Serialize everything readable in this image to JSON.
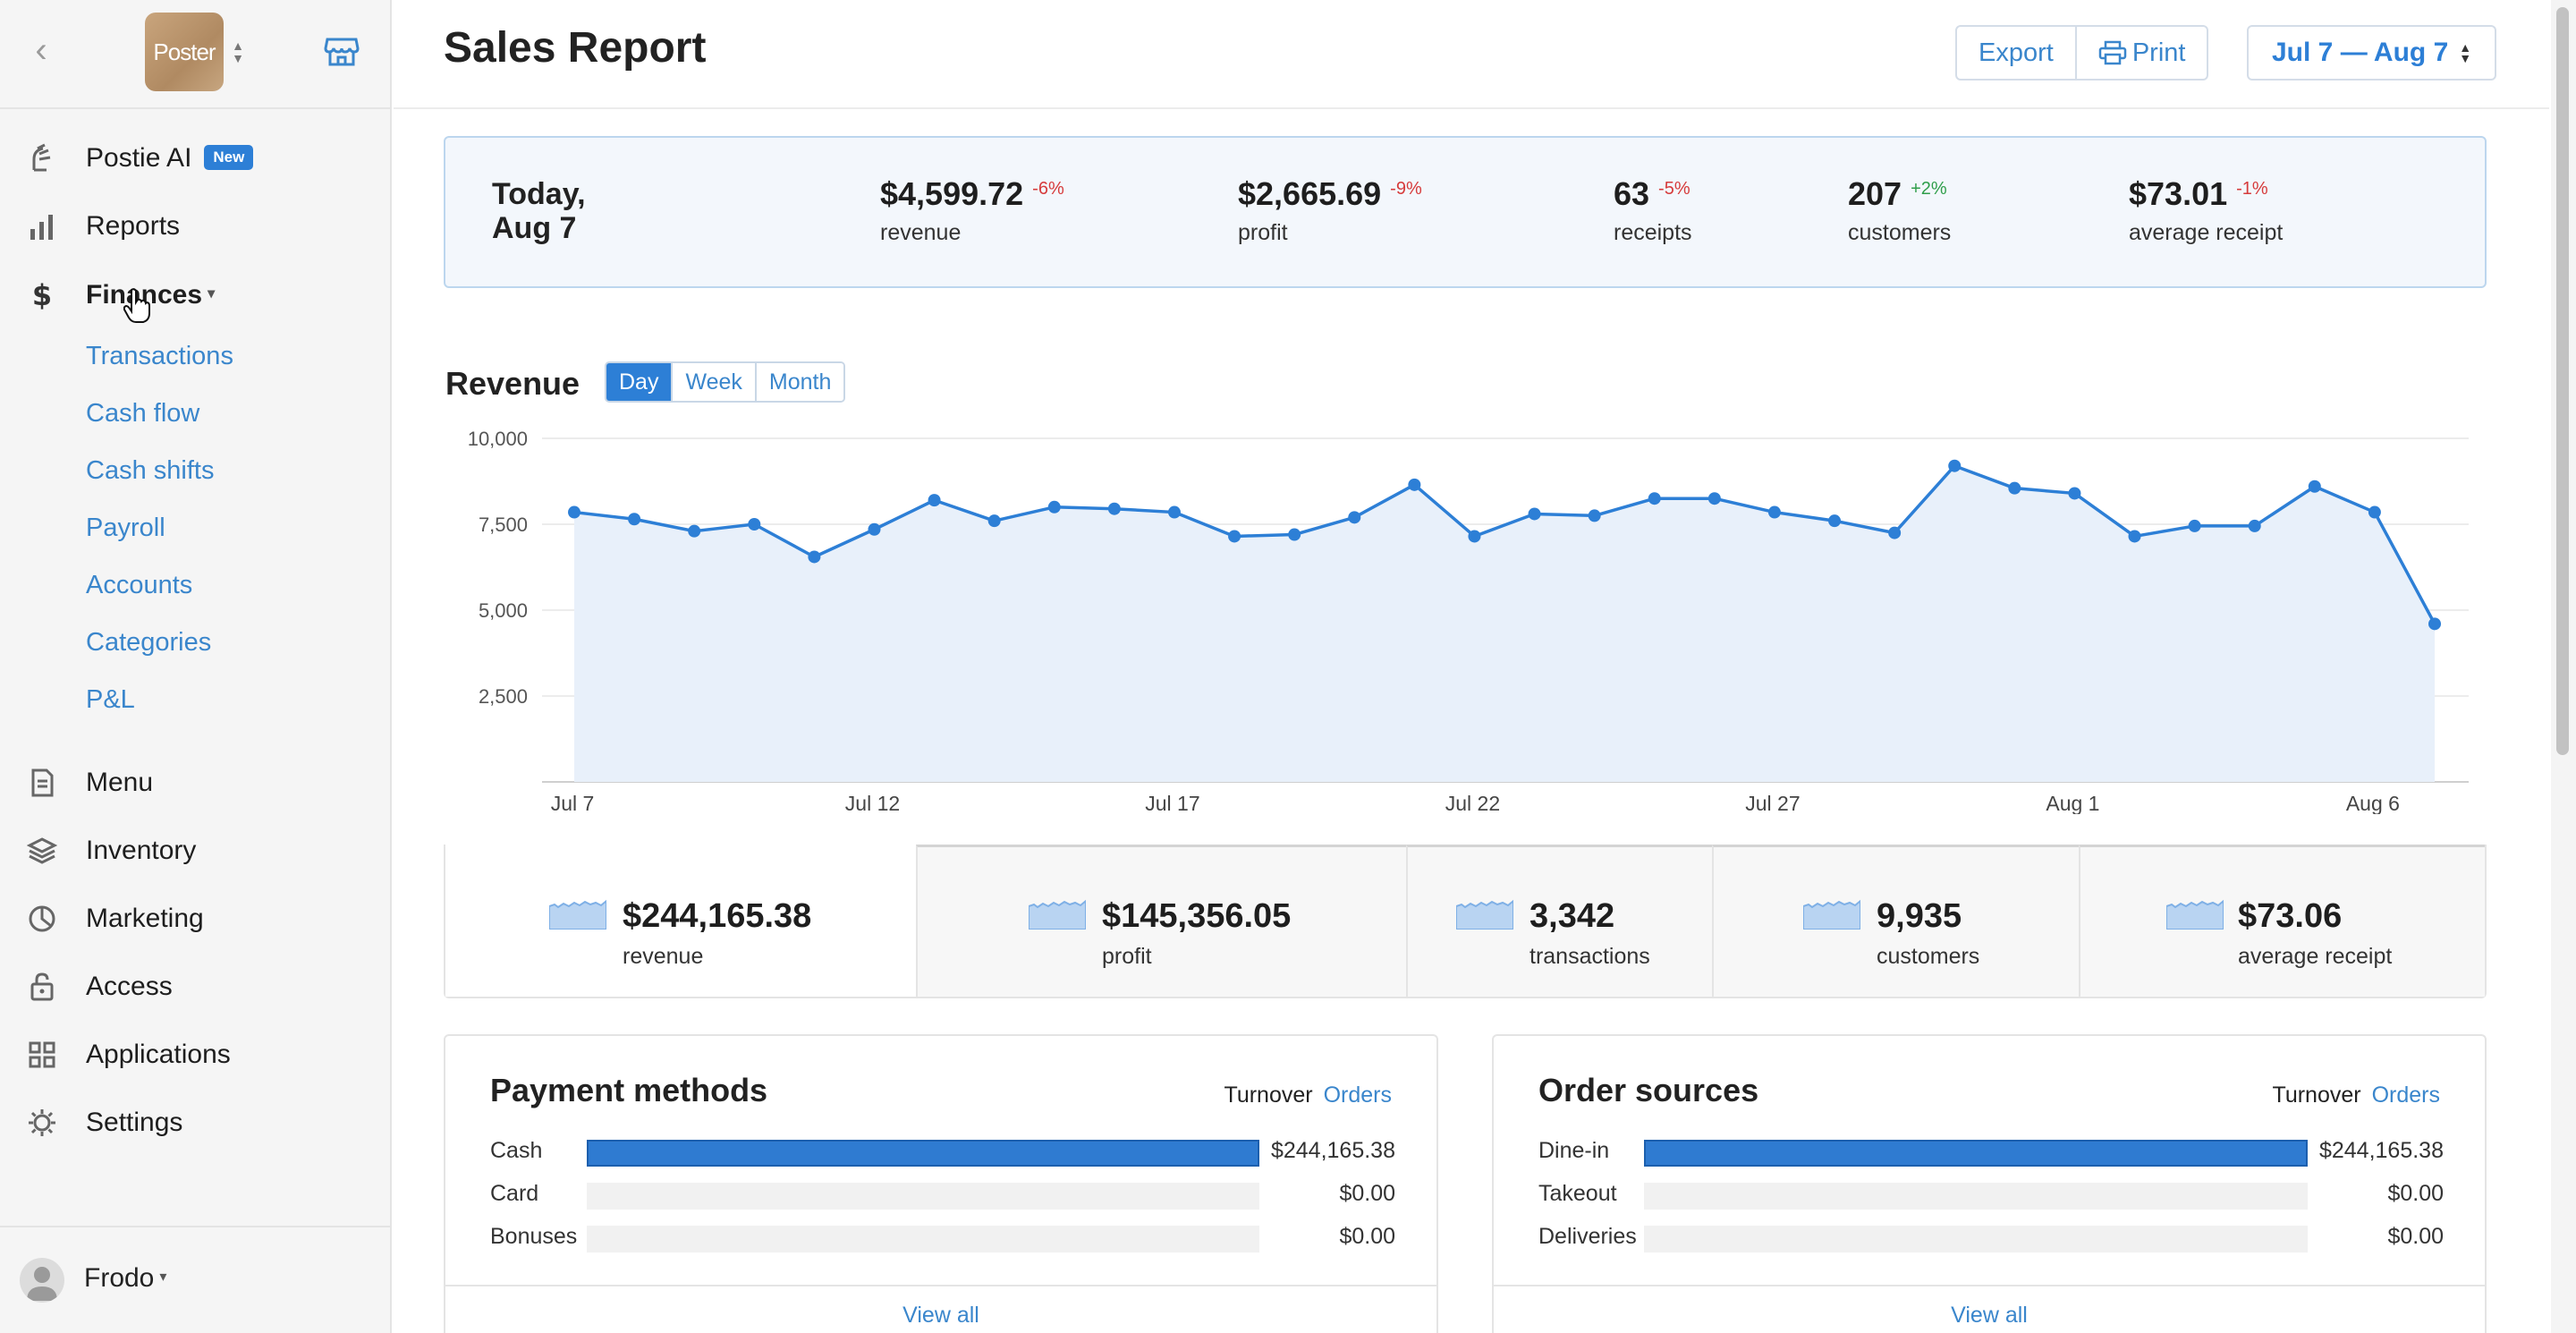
{
  "sidebar": {
    "logo_text": "Poster",
    "nav": [
      {
        "label": "Postie AI",
        "badge": "New",
        "icon": "postie-ai-icon"
      },
      {
        "label": "Reports",
        "icon": "bar-chart-icon"
      },
      {
        "label": "Finances",
        "icon": "dollar-icon"
      },
      {
        "label": "Menu",
        "icon": "document-icon"
      },
      {
        "label": "Inventory",
        "icon": "layers-icon"
      },
      {
        "label": "Marketing",
        "icon": "pie-icon"
      },
      {
        "label": "Access",
        "icon": "lock-icon"
      },
      {
        "label": "Applications",
        "icon": "grid-icon"
      },
      {
        "label": "Settings",
        "icon": "gear-icon"
      }
    ],
    "finances_sub": [
      "Transactions",
      "Cash flow",
      "Cash shifts",
      "Payroll",
      "Accounts",
      "Categories",
      "P&L"
    ],
    "user": "Frodo"
  },
  "header": {
    "title": "Sales Report",
    "export_label": "Export",
    "print_label": "Print",
    "date_range": "Jul 7 — Aug 7"
  },
  "today": {
    "label": "Today, Aug 7",
    "kpis": [
      {
        "value": "$4,599.72",
        "delta": "-6%",
        "label": "revenue"
      },
      {
        "value": "$2,665.69",
        "delta": "-9%",
        "label": "profit"
      },
      {
        "value": "63",
        "delta": "-5%",
        "label": "receipts"
      },
      {
        "value": "207",
        "delta": "+2%",
        "label": "customers"
      },
      {
        "value": "$73.01",
        "delta": "-1%",
        "label": "average receipt"
      }
    ]
  },
  "revenue": {
    "title": "Revenue",
    "periods": [
      "Day",
      "Week",
      "Month"
    ],
    "active_period": "Day"
  },
  "chart_data": {
    "type": "area",
    "title": "Revenue",
    "ylim": [
      0,
      10000
    ],
    "yticks": [
      "2,500",
      "5,000",
      "7,500",
      "10,000"
    ],
    "ytick_values": [
      2500,
      5000,
      7500,
      10000
    ],
    "xticks": [
      "Jul 7",
      "Jul 12",
      "Jul 17",
      "Jul 22",
      "Jul 27",
      "Aug 1",
      "Aug 6"
    ],
    "xtick_index": [
      0,
      5,
      10,
      15,
      20,
      25,
      30
    ],
    "x": [
      "Jul 7",
      "Jul 8",
      "Jul 9",
      "Jul 10",
      "Jul 11",
      "Jul 12",
      "Jul 13",
      "Jul 14",
      "Jul 15",
      "Jul 16",
      "Jul 17",
      "Jul 18",
      "Jul 19",
      "Jul 20",
      "Jul 21",
      "Jul 22",
      "Jul 23",
      "Jul 24",
      "Jul 25",
      "Jul 26",
      "Jul 27",
      "Jul 28",
      "Jul 29",
      "Jul 30",
      "Jul 31",
      "Aug 1",
      "Aug 2",
      "Aug 3",
      "Aug 4",
      "Aug 5",
      "Aug 6",
      "Aug 7"
    ],
    "values": [
      7850,
      7650,
      7300,
      7500,
      6550,
      7350,
      8200,
      7600,
      8000,
      7950,
      7850,
      7150,
      7200,
      7700,
      8650,
      7150,
      7800,
      7750,
      8250,
      8250,
      7850,
      7600,
      7250,
      9200,
      8550,
      8400,
      7150,
      7450,
      7450,
      8600,
      7850,
      4600
    ],
    "grid": true
  },
  "totals": [
    {
      "value": "$244,165.38",
      "label": "revenue"
    },
    {
      "value": "$145,356.05",
      "label": "profit"
    },
    {
      "value": "3,342",
      "label": "transactions"
    },
    {
      "value": "9,935",
      "label": "customers"
    },
    {
      "value": "$73.06",
      "label": "average receipt"
    }
  ],
  "payment_methods": {
    "title": "Payment methods",
    "tab1": "Turnover",
    "tab2": "Orders",
    "rows": [
      {
        "label": "Cash",
        "value": "$244,165.38",
        "fraction": 1.0
      },
      {
        "label": "Card",
        "value": "$0.00",
        "fraction": 0
      },
      {
        "label": "Bonuses",
        "value": "$0.00",
        "fraction": 0
      }
    ],
    "view_all": "View all"
  },
  "order_sources": {
    "title": "Order sources",
    "tab1": "Turnover",
    "tab2": "Orders",
    "rows": [
      {
        "label": "Dine-in",
        "value": "$244,165.38",
        "fraction": 1.0
      },
      {
        "label": "Takeout",
        "value": "$0.00",
        "fraction": 0
      },
      {
        "label": "Deliveries",
        "value": "$0.00",
        "fraction": 0
      }
    ],
    "view_all": "View all"
  },
  "colors": {
    "accent": "#2d7fd6",
    "negative": "#d63b3b",
    "positive": "#2f9e4a"
  }
}
